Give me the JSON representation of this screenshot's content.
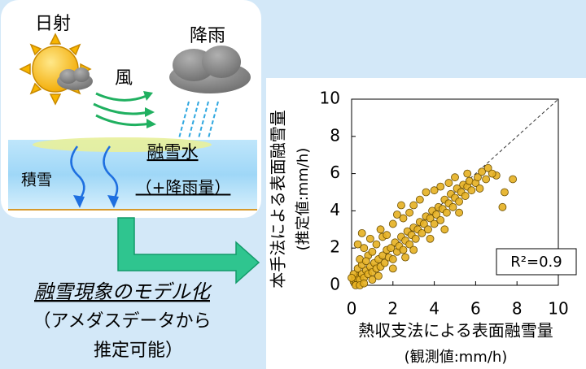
{
  "diagram": {
    "sun_label": "日射",
    "rain_label": "降雨",
    "wind_label": "風",
    "meltwater_label": "融雪水",
    "meltwater_sub": "（+降雨量）",
    "snowpack_label": "積雪",
    "model_title": "融雪現象のモデル化",
    "model_note_1": "（アメダスデータから",
    "model_note_2": "推定可能）"
  },
  "chart_data": {
    "type": "scatter",
    "x_label": [
      "熱収支法による表面融雪量",
      "(観測値:mm/h)"
    ],
    "y_label": [
      "本手法による表面融雪量",
      "(推定値:mm/h)"
    ],
    "annotation": "R²=0.9",
    "color": "#e6b021",
    "xlim": [
      0,
      10
    ],
    "ylim": [
      0,
      10
    ],
    "xticks": [
      0,
      2,
      4,
      6,
      8,
      10
    ],
    "yticks": [
      0,
      2,
      4,
      6,
      8,
      10
    ],
    "x": [
      0.1,
      0.2,
      0.3,
      0.2,
      0.4,
      0.5,
      0.1,
      0.3,
      0.6,
      0.7,
      0.5,
      0.8,
      0.9,
      1.0,
      0.4,
      1.1,
      1.2,
      0.8,
      1.3,
      1.4,
      0.6,
      1.5,
      1.0,
      1.6,
      1.7,
      0.3,
      1.8,
      1.2,
      1.9,
      2.0,
      0.9,
      2.1,
      2.2,
      1.5,
      2.3,
      2.4,
      2.5,
      1.4,
      2.6,
      2.7,
      2.8,
      2.0,
      2.9,
      3.0,
      3.1,
      2.5,
      3.2,
      3.3,
      3.4,
      2.8,
      3.5,
      3.6,
      3.7,
      3.0,
      3.8,
      3.9,
      4.0,
      3.3,
      4.1,
      4.2,
      4.3,
      3.6,
      4.4,
      4.5,
      4.6,
      4.0,
      4.7,
      4.8,
      4.9,
      4.3,
      5.0,
      5.1,
      5.2,
      4.7,
      5.3,
      5.4,
      5.5,
      5.0,
      5.6,
      5.7,
      5.8,
      5.6,
      6.0,
      6.1,
      6.3,
      6.5,
      6.6,
      6.2,
      7.0,
      7.3,
      7.4,
      7.8,
      6.8,
      0.2,
      0.4,
      0.0,
      0.6,
      1.0,
      1.3,
      0.7,
      2.0,
      2.6,
      1.7,
      3.0,
      2.2,
      3.8,
      4.5,
      5.2,
      0.5,
      2.4
    ],
    "values": [
      0.2,
      0.1,
      0.5,
      0.4,
      0.3,
      0.6,
      0.6,
      0.9,
      0.4,
      0.8,
      1.1,
      0.6,
      1.0,
      0.7,
      1.4,
      1.2,
      0.9,
      1.6,
      1.4,
      1.0,
      2.0,
      1.6,
      1.8,
      1.2,
      1.9,
      2.2,
      1.5,
      2.2,
      2.0,
      1.4,
      2.5,
      2.3,
      1.8,
      2.6,
      2.1,
      2.6,
      1.9,
      3.0,
      2.4,
      2.9,
      2.2,
      3.3,
      2.7,
      3.1,
      2.5,
      3.6,
      3.0,
      3.4,
      2.8,
      3.9,
      3.3,
      3.7,
      3.0,
      4.3,
      3.6,
      4.0,
      3.3,
      4.6,
      3.8,
      4.2,
      3.5,
      5.0,
      4.1,
      4.6,
      3.9,
      5.1,
      4.4,
      4.9,
      4.2,
      5.3,
      4.7,
      5.2,
      4.5,
      5.5,
      5.0,
      5.4,
      4.8,
      5.8,
      5.3,
      5.6,
      5.1,
      6.0,
      5.5,
      5.8,
      6.1,
      5.7,
      6.3,
      5.2,
      5.9,
      4.2,
      5.0,
      5.7,
      6.0,
      0.0,
      0.0,
      0.4,
      0.1,
      0.3,
      0.5,
      1.3,
      0.9,
      1.5,
      2.7,
      1.9,
      3.8,
      2.5,
      3.0,
      3.9,
      2.8,
      4.3
    ]
  }
}
